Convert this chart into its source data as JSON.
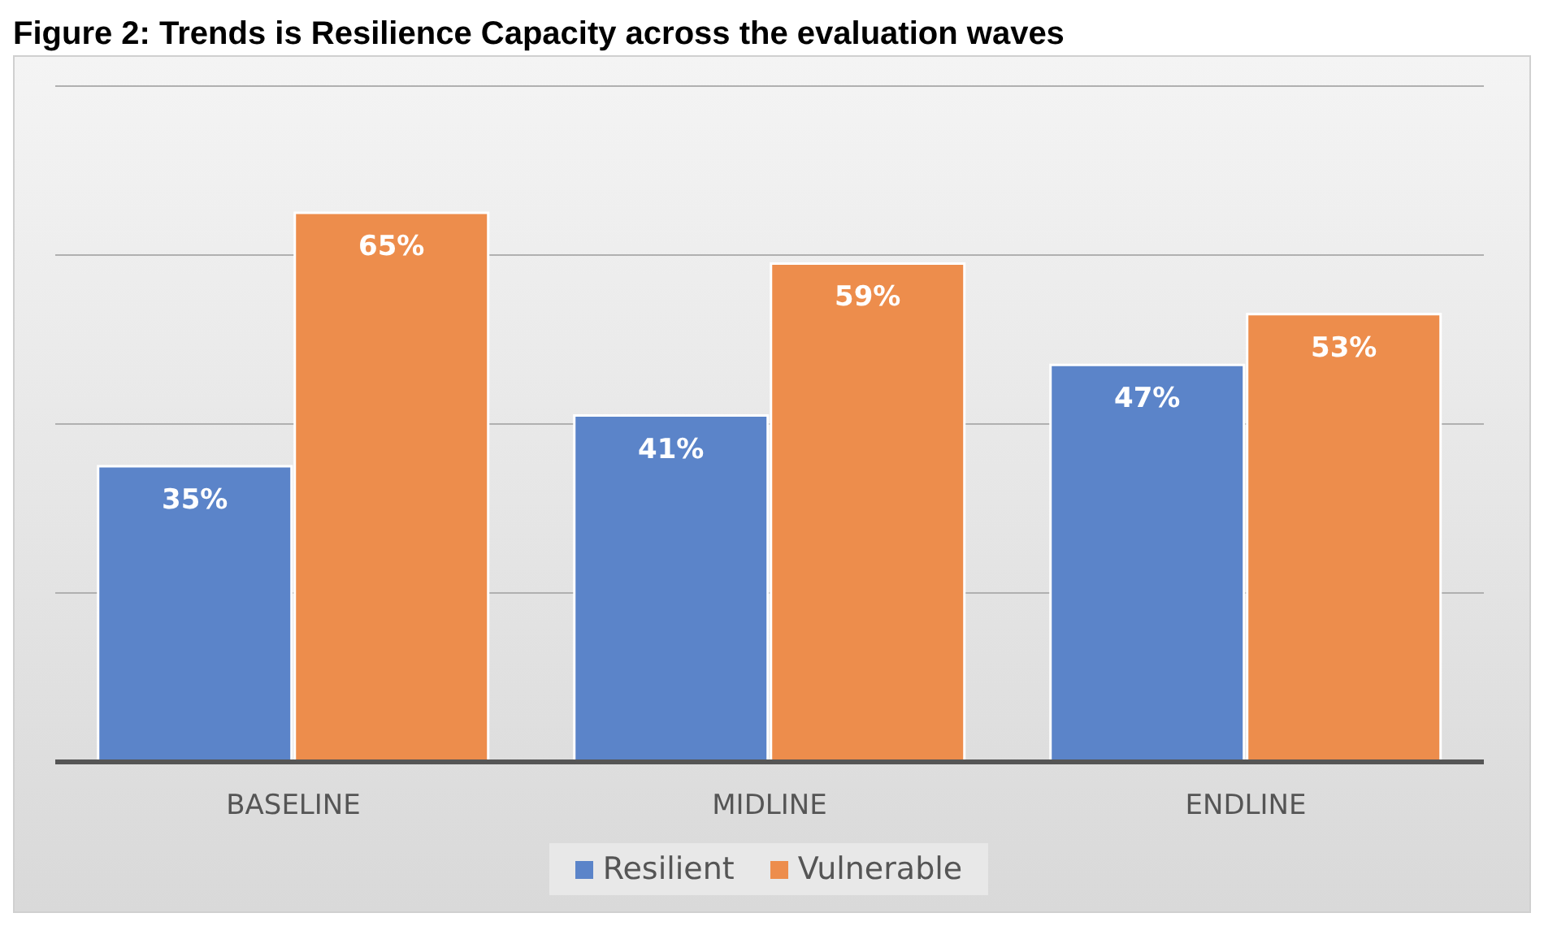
{
  "chart_data": {
    "type": "bar",
    "title": "Figure 2: Trends is Resilience Capacity across the evaluation waves",
    "categories": [
      "BASELINE",
      "MIDLINE",
      "ENDLINE"
    ],
    "series": [
      {
        "name": "Resilient",
        "color": "#5b84c9",
        "values": [
          35,
          41,
          47
        ],
        "value_labels": [
          "35%",
          "41%",
          "47%"
        ]
      },
      {
        "name": "Vulnerable",
        "color": "#ed8d4c",
        "values": [
          65,
          59,
          53
        ],
        "value_labels": [
          "65%",
          "59%",
          "53%"
        ]
      }
    ],
    "tick_labels": "x",
    "grid": "y",
    "legend": "bottom"
  }
}
